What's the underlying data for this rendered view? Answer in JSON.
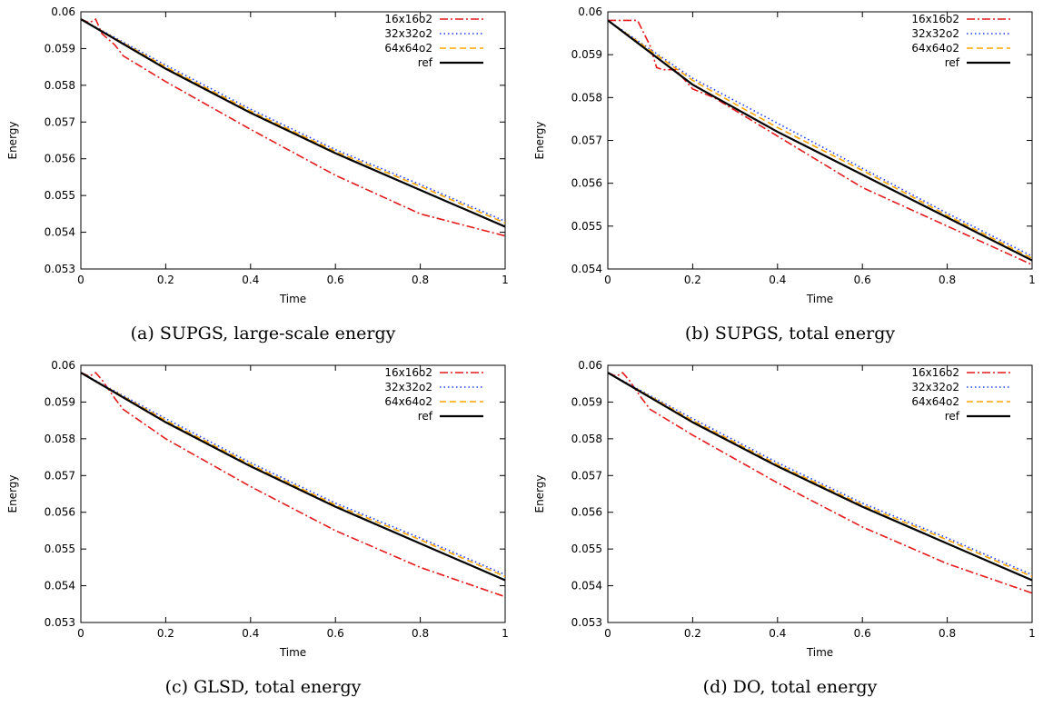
{
  "chart_data": [
    {
      "type": "line",
      "caption": "(a) SUPGS, large-scale energy",
      "xlabel": "Time",
      "ylabel": "Energy",
      "xlim": [
        0,
        1
      ],
      "ylim": [
        0.053,
        0.06
      ],
      "xticks": [
        "0",
        "0.2",
        "0.4",
        "0.6",
        "0.8",
        "1"
      ],
      "yticks": [
        "0.053",
        "0.054",
        "0.055",
        "0.056",
        "0.057",
        "0.058",
        "0.059",
        "0.06"
      ],
      "legend_position": "top-right",
      "series": [
        {
          "name": "16x16o2",
          "color": "#e41a1c",
          "dash": "dash-dot",
          "x": [
            0,
            0.02,
            0.035,
            0.05,
            0.08,
            0.1,
            0.2,
            0.4,
            0.6,
            0.8,
            1.0
          ],
          "y": [
            0.0598,
            0.0597,
            0.0598,
            0.0594,
            0.0591,
            0.0588,
            0.0581,
            0.0568,
            0.05555,
            0.0545,
            0.0539
          ]
        },
        {
          "name": "32x32o2",
          "color": "#1f3fff",
          "dash": "dotted",
          "x": [
            0,
            0.2,
            0.4,
            0.6,
            0.8,
            1.0
          ],
          "y": [
            0.0598,
            0.05855,
            0.05735,
            0.05625,
            0.0553,
            0.0543
          ]
        },
        {
          "name": "64x64o2",
          "color": "#ffa500",
          "dash": "dashed",
          "x": [
            0,
            0.2,
            0.4,
            0.6,
            0.8,
            1.0
          ],
          "y": [
            0.0598,
            0.0585,
            0.0573,
            0.0562,
            0.05525,
            0.05425
          ]
        },
        {
          "name": "ref",
          "color": "#000000",
          "dash": "solid",
          "x": [
            0,
            0.2,
            0.4,
            0.6,
            0.8,
            1.0
          ],
          "y": [
            0.0598,
            0.05845,
            0.05725,
            0.05615,
            0.05515,
            0.05415
          ]
        }
      ]
    },
    {
      "type": "line",
      "caption": "(b) SUPGS, total energy",
      "xlabel": "Time",
      "ylabel": "Energy",
      "xlim": [
        0,
        1
      ],
      "ylim": [
        0.054,
        0.06
      ],
      "xticks": [
        "0",
        "0.2",
        "0.4",
        "0.6",
        "0.8",
        "1"
      ],
      "yticks": [
        "0.054",
        "0.055",
        "0.056",
        "0.057",
        "0.058",
        "0.059",
        "0.06"
      ],
      "legend_position": "top-right",
      "series": [
        {
          "name": "16x16o2",
          "color": "#e41a1c",
          "dash": "dash-dot",
          "x": [
            0,
            0.03,
            0.07,
            0.1,
            0.115,
            0.13,
            0.16,
            0.2,
            0.25,
            0.4,
            0.6,
            0.8,
            1.0
          ],
          "y": [
            0.0598,
            0.0598,
            0.0598,
            0.0592,
            0.0587,
            0.05865,
            0.05865,
            0.0582,
            0.058,
            0.0571,
            0.0559,
            0.055,
            0.0541
          ]
        },
        {
          "name": "32x32o2",
          "color": "#1f3fff",
          "dash": "dotted",
          "x": [
            0,
            0.2,
            0.4,
            0.6,
            0.8,
            1.0
          ],
          "y": [
            0.0598,
            0.05845,
            0.0574,
            0.05635,
            0.0553,
            0.0543
          ]
        },
        {
          "name": "64x64o2",
          "color": "#ffa500",
          "dash": "dashed",
          "x": [
            0,
            0.2,
            0.4,
            0.6,
            0.8,
            1.0
          ],
          "y": [
            0.0598,
            0.0584,
            0.0573,
            0.0563,
            0.05525,
            0.05425
          ]
        },
        {
          "name": "ref",
          "color": "#000000",
          "dash": "solid",
          "x": [
            0,
            0.2,
            0.4,
            0.6,
            0.8,
            1.0
          ],
          "y": [
            0.0598,
            0.0583,
            0.0572,
            0.0562,
            0.0552,
            0.0542
          ]
        }
      ]
    },
    {
      "type": "line",
      "caption": "(c) GLSD, total energy",
      "xlabel": "Time",
      "ylabel": "Energy",
      "xlim": [
        0,
        1
      ],
      "ylim": [
        0.053,
        0.06
      ],
      "xticks": [
        "0",
        "0.2",
        "0.4",
        "0.6",
        "0.8",
        "1"
      ],
      "yticks": [
        "0.053",
        "0.054",
        "0.055",
        "0.056",
        "0.057",
        "0.058",
        "0.059",
        "0.06"
      ],
      "legend_position": "top-right",
      "series": [
        {
          "name": "16x16o2",
          "color": "#e41a1c",
          "dash": "dash-dot",
          "x": [
            0,
            0.02,
            0.035,
            0.05,
            0.08,
            0.1,
            0.2,
            0.4,
            0.6,
            0.8,
            1.0
          ],
          "y": [
            0.0598,
            0.0597,
            0.0598,
            0.0596,
            0.0591,
            0.0588,
            0.058,
            0.0567,
            0.0555,
            0.0545,
            0.0537
          ]
        },
        {
          "name": "32x32o2",
          "color": "#1f3fff",
          "dash": "dotted",
          "x": [
            0,
            0.2,
            0.4,
            0.6,
            0.8,
            1.0
          ],
          "y": [
            0.0598,
            0.05855,
            0.05735,
            0.05625,
            0.0553,
            0.0543
          ]
        },
        {
          "name": "64x64o2",
          "color": "#ffa500",
          "dash": "dashed",
          "x": [
            0,
            0.2,
            0.4,
            0.6,
            0.8,
            1.0
          ],
          "y": [
            0.0598,
            0.0585,
            0.0573,
            0.0562,
            0.05525,
            0.05425
          ]
        },
        {
          "name": "ref",
          "color": "#000000",
          "dash": "solid",
          "x": [
            0,
            0.2,
            0.4,
            0.6,
            0.8,
            1.0
          ],
          "y": [
            0.0598,
            0.05845,
            0.05725,
            0.05615,
            0.05515,
            0.05415
          ]
        }
      ]
    },
    {
      "type": "line",
      "caption": "(d) DO, total energy",
      "xlabel": "Time",
      "ylabel": "Energy",
      "xlim": [
        0,
        1
      ],
      "ylim": [
        0.053,
        0.06
      ],
      "xticks": [
        "0",
        "0.2",
        "0.4",
        "0.6",
        "0.8",
        "1"
      ],
      "yticks": [
        "0.053",
        "0.054",
        "0.055",
        "0.056",
        "0.057",
        "0.058",
        "0.059",
        "0.06"
      ],
      "legend_position": "top-right",
      "series": [
        {
          "name": "16x16o2",
          "color": "#e41a1c",
          "dash": "dash-dot",
          "x": [
            0,
            0.02,
            0.035,
            0.05,
            0.08,
            0.1,
            0.2,
            0.4,
            0.6,
            0.8,
            1.0
          ],
          "y": [
            0.0598,
            0.0597,
            0.0598,
            0.0596,
            0.0591,
            0.0588,
            0.0581,
            0.0568,
            0.0556,
            0.0546,
            0.0538
          ]
        },
        {
          "name": "32x32o2",
          "color": "#1f3fff",
          "dash": "dotted",
          "x": [
            0,
            0.2,
            0.4,
            0.6,
            0.8,
            1.0
          ],
          "y": [
            0.0598,
            0.05855,
            0.05735,
            0.05625,
            0.0553,
            0.0543
          ]
        },
        {
          "name": "64x64o2",
          "color": "#ffa500",
          "dash": "dashed",
          "x": [
            0,
            0.2,
            0.4,
            0.6,
            0.8,
            1.0
          ],
          "y": [
            0.0598,
            0.0585,
            0.0573,
            0.0562,
            0.05525,
            0.05425
          ]
        },
        {
          "name": "ref",
          "color": "#000000",
          "dash": "solid",
          "x": [
            0,
            0.2,
            0.4,
            0.6,
            0.8,
            1.0
          ],
          "y": [
            0.0598,
            0.05845,
            0.05725,
            0.05615,
            0.05515,
            0.05415
          ]
        }
      ]
    }
  ]
}
